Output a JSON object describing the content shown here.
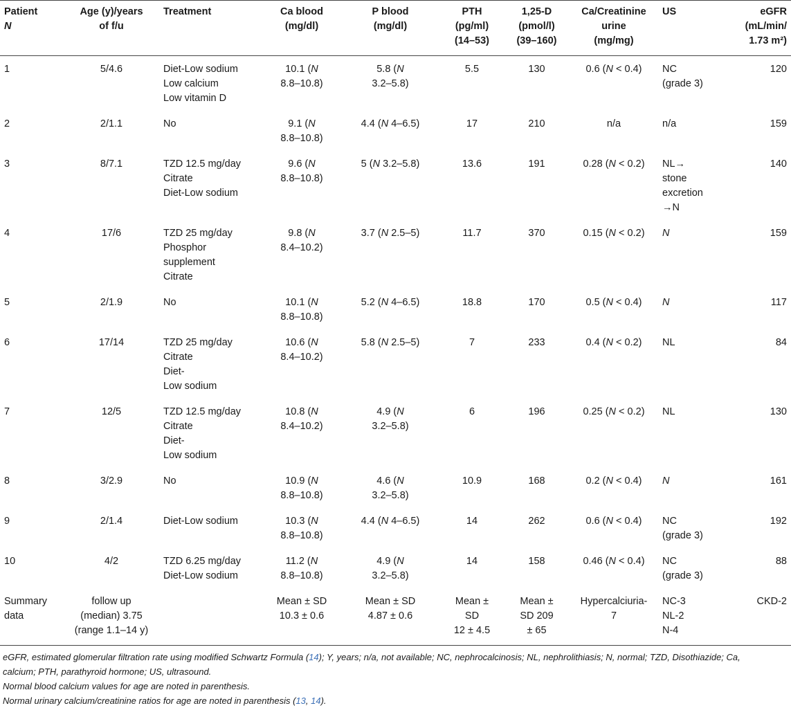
{
  "headers": [
    {
      "lines": [
        "Patient",
        "N"
      ]
    },
    {
      "lines": [
        "Age (y)/years",
        "of f/u"
      ]
    },
    {
      "lines": [
        "Treatment"
      ]
    },
    {
      "lines": [
        "Ca blood",
        "(mg/dl)"
      ]
    },
    {
      "lines": [
        "P blood",
        "(mg/dl)"
      ]
    },
    {
      "lines": [
        "PTH",
        "(pg/ml)",
        "(14–53)"
      ]
    },
    {
      "lines": [
        "1,25-D",
        "(pmol/l)",
        "(39–160)"
      ]
    },
    {
      "lines": [
        "Ca/Creatinine",
        "urine",
        "(mg/mg)"
      ]
    },
    {
      "lines": [
        "US"
      ]
    },
    {
      "lines": [
        "eGFR",
        "(mL/min/",
        "1.73 m²)"
      ]
    }
  ],
  "rows": [
    {
      "patient": "1",
      "age": "5/4.6",
      "treatment": [
        "Diet-Low sodium",
        "Low calcium",
        "Low vitamin D"
      ],
      "ca": [
        "10.1 (N",
        "8.8–10.8)"
      ],
      "p": [
        "5.8 (N",
        "3.2–5.8)"
      ],
      "pth": "5.5",
      "vitd": "130",
      "ratio": "0.6 (N < 0.4)",
      "us": [
        "NC",
        "(grade 3)"
      ],
      "egfr": "120"
    },
    {
      "patient": "2",
      "age": "2/1.1",
      "treatment": [
        "No"
      ],
      "ca": [
        "9.1 (N",
        "8.8–10.8)"
      ],
      "p": [
        "4.4 (N 4–6.5)"
      ],
      "pth": "17",
      "vitd": "210",
      "ratio": "n/a",
      "us": [
        "n/a"
      ],
      "egfr": "159"
    },
    {
      "patient": "3",
      "age": "8/7.1",
      "treatment": [
        "TZD 12.5 mg/day",
        "Citrate",
        "Diet-Low sodium"
      ],
      "ca": [
        "9.6 (N",
        "8.8–10.8)"
      ],
      "p": [
        "5 (N 3.2–5.8)"
      ],
      "pth": "13.6",
      "vitd": "191",
      "ratio": "0.28 (N < 0.2)",
      "us": [
        "NL→",
        "stone",
        "excretion",
        "→N"
      ],
      "egfr": "140"
    },
    {
      "patient": "4",
      "age": "17/6",
      "treatment": [
        "TZD 25 mg/day",
        "Phosphor",
        "supplement",
        "Citrate"
      ],
      "ca": [
        "9.8 (N",
        "8.4–10.2)"
      ],
      "p": [
        "3.7 (N 2.5–5)"
      ],
      "pth": "11.7",
      "vitd": "370",
      "ratio": "0.15 (N < 0.2)",
      "us": [
        "N"
      ],
      "egfr": "159"
    },
    {
      "patient": "5",
      "age": "2/1.9",
      "treatment": [
        "No"
      ],
      "ca": [
        "10.1 (N",
        "8.8–10.8)"
      ],
      "p": [
        "5.2 (N 4–6.5)"
      ],
      "pth": "18.8",
      "vitd": "170",
      "ratio": "0.5 (N < 0.4)",
      "us": [
        "N"
      ],
      "egfr": "117"
    },
    {
      "patient": "6",
      "age": "17/14",
      "treatment": [
        "TZD 25 mg/day",
        "Citrate",
        "Diet-",
        "Low sodium"
      ],
      "ca": [
        "10.6 (N",
        "8.4–10.2)"
      ],
      "p": [
        "5.8 (N 2.5–5)"
      ],
      "pth": "7",
      "vitd": "233",
      "ratio": "0.4 (N < 0.2)",
      "us": [
        "NL"
      ],
      "egfr": "84"
    },
    {
      "patient": "7",
      "age": "12/5",
      "treatment": [
        "TZD 12.5 mg/day",
        "Citrate",
        "Diet-",
        "Low sodium"
      ],
      "ca": [
        "10.8 (N",
        "8.4–10.2)"
      ],
      "p": [
        "4.9 (N",
        "3.2–5.8)"
      ],
      "pth": "6",
      "vitd": "196",
      "ratio": "0.25 (N < 0.2)",
      "us": [
        "NL"
      ],
      "egfr": "130"
    },
    {
      "patient": "8",
      "age": "3/2.9",
      "treatment": [
        "No"
      ],
      "ca": [
        "10.9 (N",
        "8.8–10.8)"
      ],
      "p": [
        "4.6 (N",
        "3.2–5.8)"
      ],
      "pth": "10.9",
      "vitd": "168",
      "ratio": "0.2 (N < 0.4)",
      "us": [
        "N"
      ],
      "egfr": "161"
    },
    {
      "patient": "9",
      "age": "2/1.4",
      "treatment": [
        "Diet-Low sodium"
      ],
      "ca": [
        "10.3 (N",
        "8.8–10.8)"
      ],
      "p": [
        "4.4 (N 4–6.5)"
      ],
      "pth": "14",
      "vitd": "262",
      "ratio": "0.6 (N < 0.4)",
      "us": [
        "NC",
        "(grade 3)"
      ],
      "egfr": "192"
    },
    {
      "patient": "10",
      "age": "4/2",
      "treatment": [
        "TZD 6.25 mg/day",
        "Diet-Low sodium"
      ],
      "ca": [
        "11.2 (N",
        "8.8–10.8)"
      ],
      "p": [
        "4.9 (N",
        "3.2–5.8)"
      ],
      "pth": "14",
      "vitd": "158",
      "ratio": "0.46 (N < 0.4)",
      "us": [
        "NC",
        "(grade 3)"
      ],
      "egfr": "88"
    }
  ],
  "summary": {
    "patient": [
      "Summary",
      "data"
    ],
    "age": [
      "follow up",
      "(median) 3.75",
      "(range 1.1–14 y)"
    ],
    "treatment": [
      ""
    ],
    "ca": [
      "Mean ± SD",
      "10.3 ± 0.6"
    ],
    "p": [
      "Mean ± SD",
      "4.87 ± 0.6"
    ],
    "pth": [
      "Mean ±",
      "SD",
      "12 ± 4.5"
    ],
    "vitd": [
      "Mean ±",
      "SD 209",
      "± 65"
    ],
    "ratio": [
      "Hypercalciuria-",
      "7"
    ],
    "us": [
      "NC-3",
      "NL-2",
      "N-4"
    ],
    "egfr": [
      "CKD-2"
    ]
  },
  "notes": {
    "line1_a": "eGFR, estimated glomerular filtration rate using modified Schwartz Formula (",
    "line1_ref": "14",
    "line1_b": "); Y, years; n/a, not available; NC, nephrocalcinosis; NL, nephrolithiasis; N, normal; TZD, Disothiazide; Ca,",
    "line2": "calcium; PTH, parathyroid hormone; US, ultrasound.",
    "line3": "Normal blood calcium values for age are noted in parenthesis.",
    "line4_a": "Normal urinary calcium/creatinine ratios for age are noted in parenthesis (",
    "line4_ref1": "13",
    "line4_sep": ", ",
    "line4_ref2": "14",
    "line4_b": ")."
  },
  "colors": {
    "text": "#1a1a1a",
    "rule": "#444444",
    "link": "#3b6fb6"
  }
}
